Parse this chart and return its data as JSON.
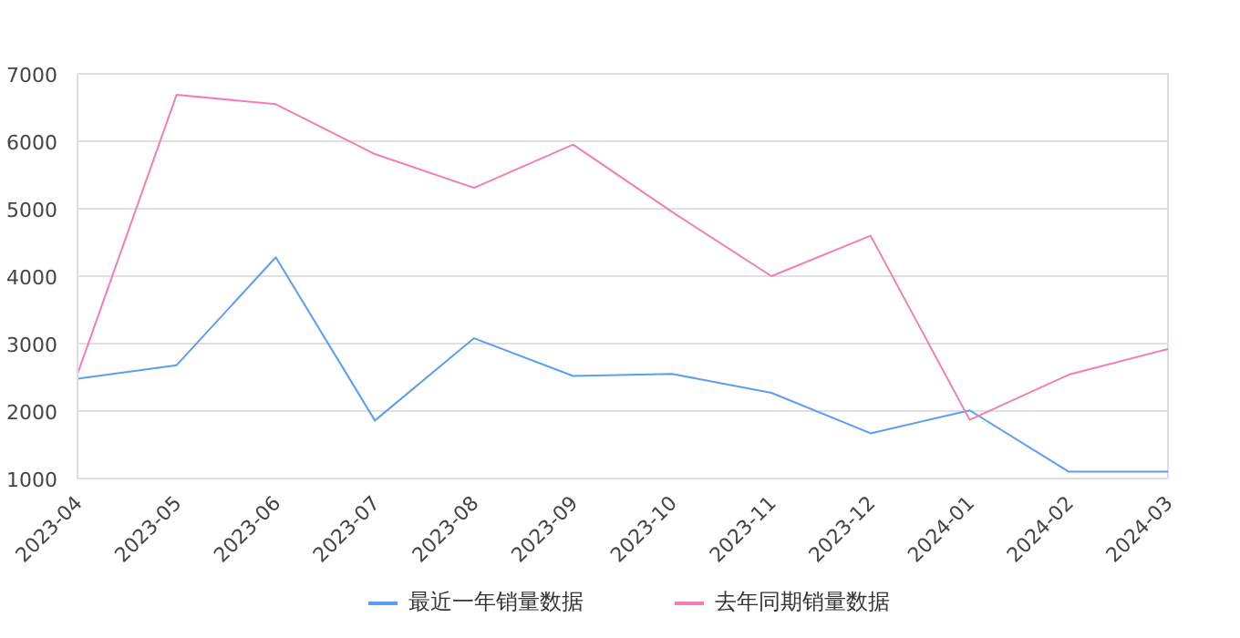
{
  "chart_data": {
    "type": "line",
    "categories": [
      "2023-04",
      "2023-05",
      "2023-06",
      "2023-07",
      "2023-08",
      "2023-09",
      "2023-10",
      "2023-11",
      "2023-12",
      "2024-01",
      "2024-02",
      "2024-03"
    ],
    "series": [
      {
        "name": "最近一年销量数据",
        "color": "#5b9ef0",
        "values": [
          2480,
          2680,
          4280,
          1860,
          3080,
          2520,
          2550,
          2270,
          1670,
          2010,
          1100,
          1100
        ]
      },
      {
        "name": "去年同期销量数据",
        "color": "#f07fb4",
        "values": [
          2550,
          6690,
          6550,
          5810,
          5310,
          5950,
          4950,
          4000,
          4600,
          1870,
          2540,
          2920
        ]
      }
    ],
    "ylim": [
      1000,
      7000
    ],
    "yticks": [
      1000,
      2000,
      3000,
      4000,
      5000,
      6000,
      7000
    ],
    "grid": "y",
    "legend": "bottom",
    "marker": "none",
    "line_style": "solid"
  }
}
